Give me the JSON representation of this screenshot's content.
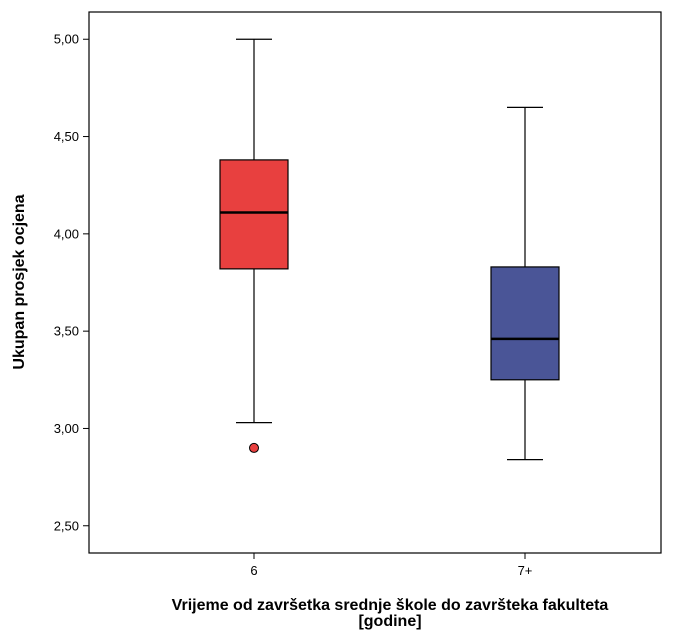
{
  "chart_data": {
    "type": "boxplot",
    "xlabel_lines": [
      "Vrijeme od završetka srednje škole do završteka fakulteta",
      "[godine]"
    ],
    "ylabel": "Ukupan prosjek ocjena",
    "ylim": [
      2.36,
      5.14
    ],
    "yticks": [
      {
        "value": 5.0,
        "label": "5,00"
      },
      {
        "value": 4.5,
        "label": "4,50"
      },
      {
        "value": 4.0,
        "label": "4,00"
      },
      {
        "value": 3.5,
        "label": "3,50"
      },
      {
        "value": 3.0,
        "label": "3,00"
      },
      {
        "value": 2.5,
        "label": "2,50"
      }
    ],
    "categories": [
      "6",
      "7+"
    ],
    "boxes": [
      {
        "category": "6",
        "whisker_low": 3.03,
        "q1": 3.82,
        "median": 4.11,
        "q3": 4.38,
        "whisker_high": 5.0,
        "outliers": [
          2.9
        ],
        "color": "#e8403f"
      },
      {
        "category": "7+",
        "whisker_low": 2.84,
        "q1": 3.25,
        "median": 3.46,
        "q3": 3.83,
        "whisker_high": 4.65,
        "outliers": [],
        "color": "#4a5597"
      }
    ],
    "grid": false,
    "legend": "none"
  }
}
